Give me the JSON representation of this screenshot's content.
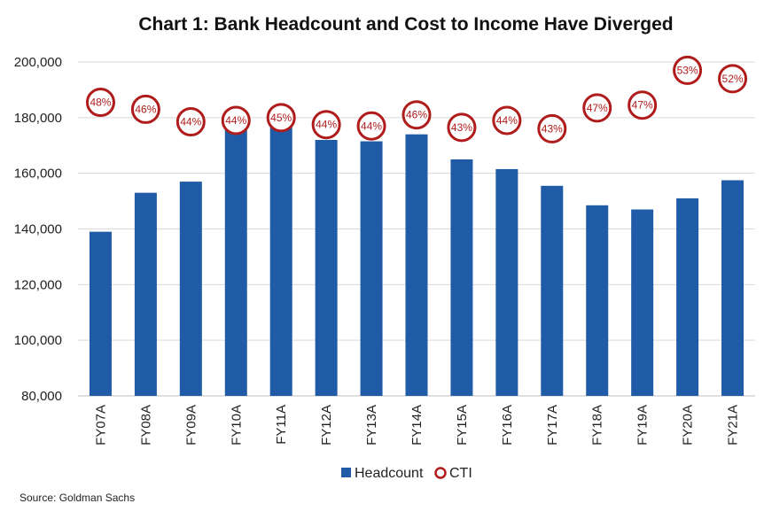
{
  "chart_data": {
    "type": "bar",
    "title": "Chart 1: Bank Headcount and Cost to Income Have Diverged",
    "xlabel": "",
    "ylabel": "",
    "categories": [
      "FY07A",
      "FY08A",
      "FY09A",
      "FY10A",
      "FY11A",
      "FY12A",
      "FY13A",
      "FY14A",
      "FY15A",
      "FY16A",
      "FY17A",
      "FY18A",
      "FY19A",
      "FY20A",
      "FY21A"
    ],
    "ylim": [
      80000,
      200000
    ],
    "yticks": [
      "80,000",
      "100,000",
      "120,000",
      "140,000",
      "160,000",
      "180,000",
      "200,000"
    ],
    "grid": true,
    "legend_position": "bottom",
    "series": [
      {
        "name": "Headcount",
        "kind": "bar",
        "color": "#1f5ba6",
        "values": [
          139000,
          153000,
          157000,
          176000,
          178000,
          172000,
          171500,
          174000,
          165000,
          161500,
          155500,
          148500,
          147000,
          151000,
          157500
        ]
      },
      {
        "name": "CTI",
        "kind": "marker",
        "color": "#b01c1c",
        "labels": [
          "48%",
          "46%",
          "44%",
          "44%",
          "45%",
          "44%",
          "44%",
          "46%",
          "43%",
          "44%",
          "43%",
          "47%",
          "47%",
          "53%",
          "52%"
        ],
        "values": [
          48,
          46,
          44,
          44,
          45,
          44,
          44,
          46,
          43,
          44,
          43,
          47,
          47,
          53,
          52
        ],
        "marker_y_positions_in_headcount_units": [
          185500,
          183000,
          178500,
          179000,
          180000,
          177500,
          177000,
          181000,
          176500,
          179000,
          176000,
          183500,
          184500,
          197000,
          194000
        ]
      }
    ],
    "source": "Source: Goldman Sachs"
  }
}
